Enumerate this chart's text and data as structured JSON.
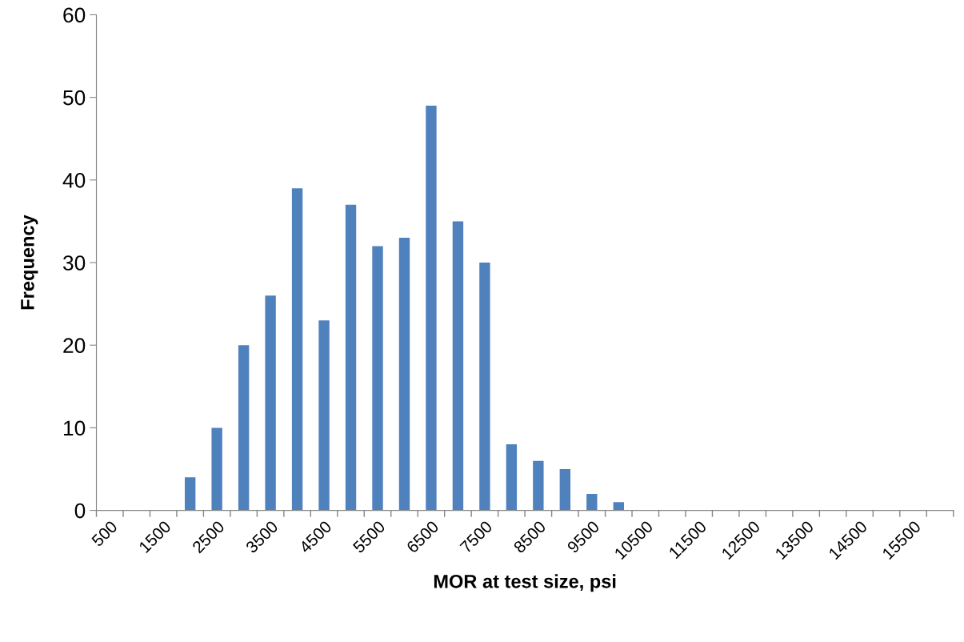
{
  "chart_data": {
    "type": "bar",
    "xlabel": "MOR at test size, psi",
    "ylabel": "Frequency",
    "categories": [
      "500",
      null,
      "1500",
      null,
      "2500",
      null,
      "3500",
      null,
      "4500",
      null,
      "5500",
      null,
      "6500",
      null,
      "7500",
      null,
      "8500",
      null,
      "9500",
      null,
      "10500",
      null,
      "11500",
      null,
      "12500",
      null,
      "13500",
      null,
      "14500",
      null,
      "15500",
      null
    ],
    "values": [
      0,
      0,
      0,
      4,
      10,
      20,
      26,
      39,
      23,
      37,
      32,
      33,
      49,
      35,
      30,
      8,
      6,
      5,
      2,
      1,
      0,
      0,
      0,
      0,
      0,
      0,
      0,
      0,
      0,
      0,
      0,
      0
    ],
    "color": "#4f81bd",
    "ylim": [
      0,
      60
    ],
    "yticks": [
      0,
      10,
      20,
      30,
      40,
      50,
      60
    ],
    "grid": false
  }
}
